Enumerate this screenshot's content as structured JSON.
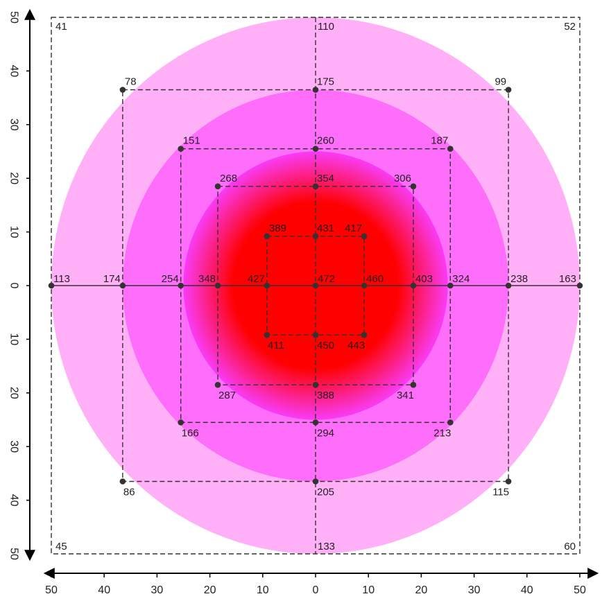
{
  "chart_data": {
    "type": "heatmap",
    "title": "",
    "xlim": [
      -50,
      50
    ],
    "ylim": [
      -50,
      50
    ],
    "axis_ticks": [
      50,
      40,
      30,
      20,
      10,
      0,
      10,
      20,
      30,
      40,
      50
    ],
    "grid": false,
    "colors": {
      "ring_outer": "#ffb0f7",
      "ring_middle": "#ff6dfb",
      "ring_inner": "#f93bf6",
      "center": "#ff0000",
      "line": "#333333",
      "point": "#333333"
    },
    "rings": [
      {
        "radius": 50,
        "color": "ring_outer"
      },
      {
        "radius": 36.5,
        "color": "ring_middle"
      },
      {
        "radius": 25,
        "color": "ring_inner"
      },
      {
        "radius": 18,
        "color": "center"
      }
    ],
    "squares": [
      {
        "half": 50,
        "values": {
          "tl": 41,
          "tc": 110,
          "tr": 52,
          "ml": 113,
          "mr": 163,
          "bl": 45,
          "bc": 133,
          "br": 60
        }
      },
      {
        "half": 36.5,
        "values": {
          "tl": 78,
          "tc": 175,
          "tr": 99,
          "ml": 174,
          "mr": 238,
          "bl": 86,
          "bc": 205,
          "br": 115
        }
      },
      {
        "half": 25.5,
        "values": {
          "tl": 151,
          "tc": 260,
          "tr": 187,
          "ml": 254,
          "mr": 324,
          "bl": 166,
          "bc": 294,
          "br": 213
        }
      },
      {
        "half": 18.5,
        "values": {
          "tl": 268,
          "tc": 354,
          "tr": 306,
          "ml": 348,
          "mr": 403,
          "bl": 287,
          "bc": 388,
          "br": 341
        }
      },
      {
        "half": 9.2,
        "values": {
          "tl": 389,
          "tc": 431,
          "tr": 417,
          "ml": 427,
          "mr": 460,
          "bl": 411,
          "bc": 450,
          "br": 443
        }
      }
    ],
    "center": {
      "x": 0,
      "y": 0,
      "value": 472
    }
  }
}
